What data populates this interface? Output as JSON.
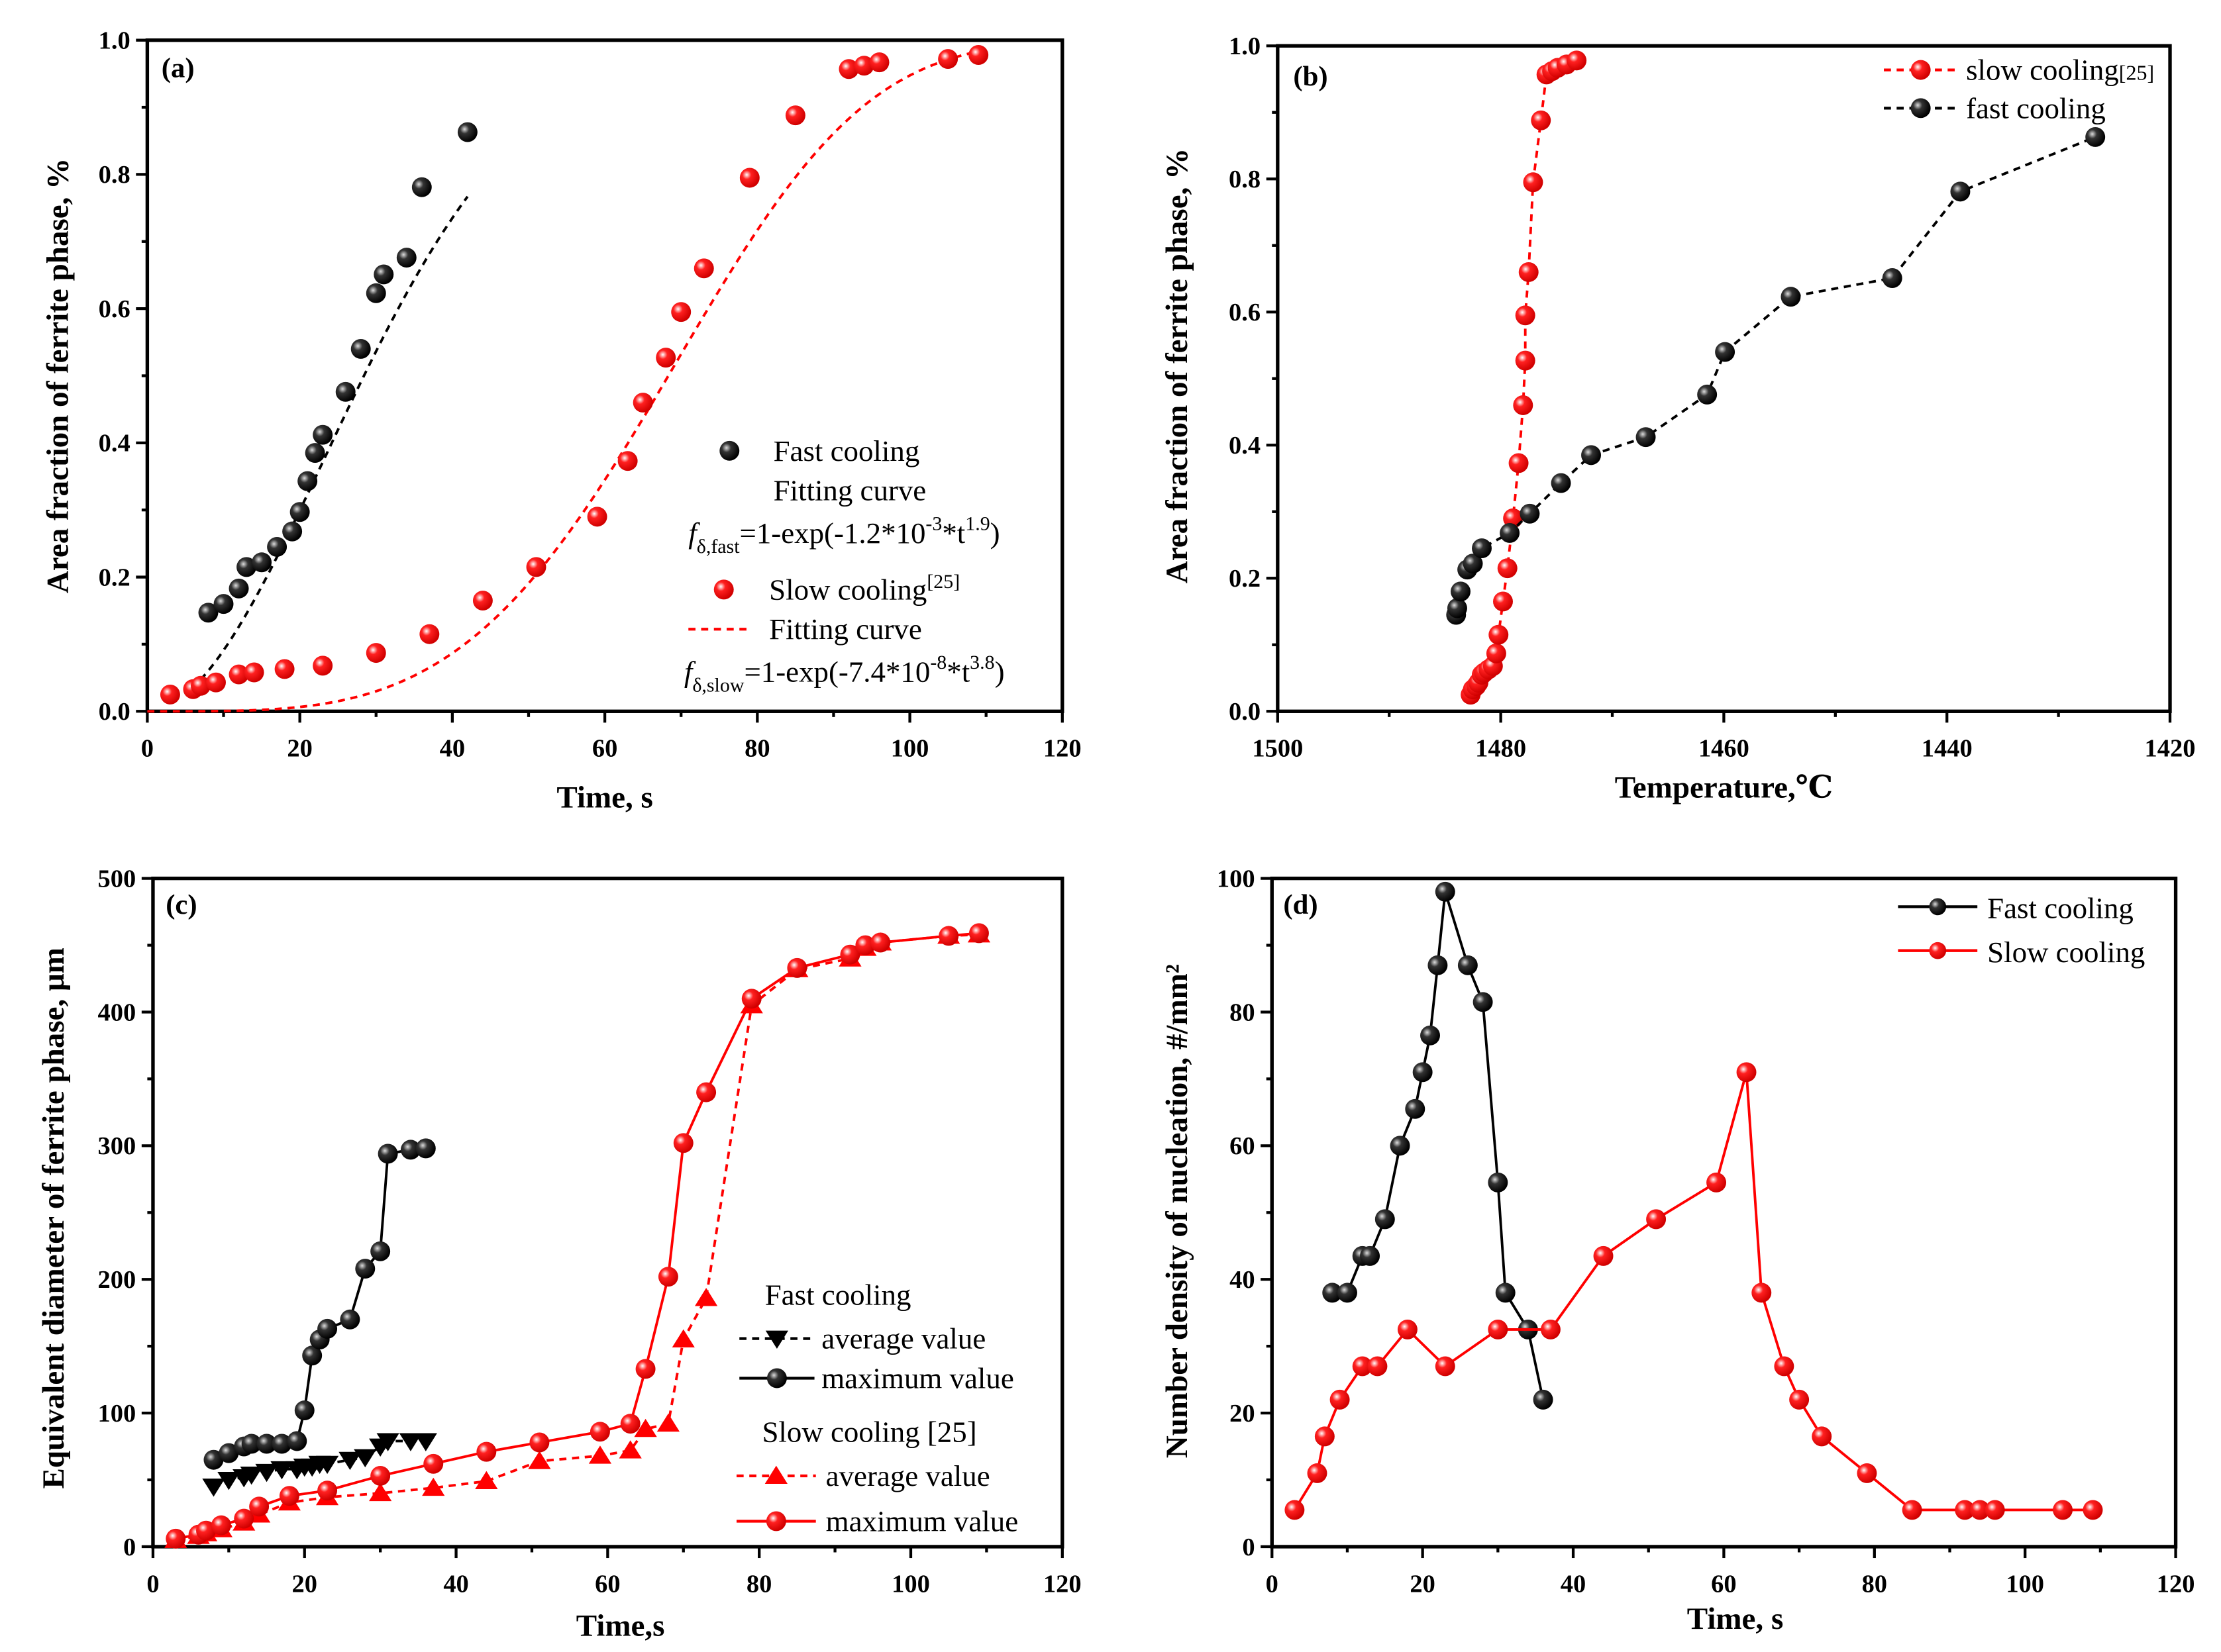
{
  "chart_data": [
    {
      "type": "scatter",
      "panel_label": "(a)",
      "xlabel": "Time, s",
      "ylabel": "Area fraction of ferrite phase, %",
      "xlim": [
        0,
        120
      ],
      "ylim": [
        0,
        1.0
      ],
      "xticks": [
        0,
        20,
        40,
        60,
        80,
        100,
        120
      ],
      "yticks": [
        "0.0",
        "0.2",
        "0.4",
        "0.6",
        "0.8",
        "1.0"
      ],
      "legend_position": "center-right",
      "series": [
        {
          "name": "Fast cooling",
          "color": "#000000",
          "marker": "ball",
          "x": [
            8,
            10,
            12,
            13,
            15,
            17,
            19,
            20,
            21,
            22,
            23,
            26,
            28,
            30,
            31,
            34,
            36,
            42
          ],
          "y": [
            0.147,
            0.16,
            0.183,
            0.215,
            0.222,
            0.245,
            0.268,
            0.297,
            0.343,
            0.385,
            0.412,
            0.476,
            0.54,
            0.623,
            0.651,
            0.676,
            0.781,
            0.863
          ]
        },
        {
          "name": "Slow cooling",
          "ref": "[25]",
          "color": "#ff0000",
          "marker": "ball",
          "x": [
            3,
            6,
            7,
            9,
            12,
            14,
            18,
            23,
            30,
            37,
            44,
            51,
            59,
            63,
            65,
            68,
            70,
            73,
            79,
            85,
            92,
            94,
            96,
            105,
            109
          ],
          "y": [
            0.025,
            0.033,
            0.038,
            0.043,
            0.055,
            0.058,
            0.063,
            0.068,
            0.087,
            0.115,
            0.165,
            0.215,
            0.29,
            0.373,
            0.46,
            0.527,
            0.595,
            0.66,
            0.795,
            0.888,
            0.957,
            0.962,
            0.967,
            0.972,
            0.978
          ]
        }
      ],
      "fits": [
        {
          "name": "Fitting curve",
          "color": "#000000",
          "k": 0.0012,
          "n": 1.9,
          "range": [
            7,
            42
          ],
          "formula": {
            "f": "f",
            "sub": "δ,fast",
            "body": "=1-exp(-1.2*10",
            "exp1": "-3",
            "mid": "*t",
            "exp2": "1.9",
            "end": ")"
          }
        },
        {
          "name": "Fitting curve",
          "color": "#ff0000",
          "k": 7.4e-08,
          "n": 3.8,
          "range": [
            0,
            110
          ],
          "formula": {
            "f": "f",
            "sub": "δ,slow",
            "body": "=1-exp(-7.4*10",
            "exp1": "-8",
            "mid": "*t",
            "exp2": "3.8",
            "end": ")"
          }
        }
      ]
    },
    {
      "type": "line",
      "panel_label": "(b)",
      "xlabel": "Temperature,℃",
      "ylabel": "Area fraction of ferrite phase, %",
      "xlim": [
        1500,
        1420
      ],
      "ylim": [
        0,
        1.0
      ],
      "xticks": [
        1500,
        1480,
        1460,
        1440,
        1420
      ],
      "yticks": [
        "0.0",
        "0.2",
        "0.4",
        "0.6",
        "0.8",
        "1.0"
      ],
      "legend_position": "top-right",
      "series": [
        {
          "name": "slow cooling",
          "ref": "[25]",
          "color": "#ff0000",
          "dash": true,
          "x": [
            1482.7,
            1482.5,
            1482.2,
            1482.0,
            1481.7,
            1481.5,
            1481.1,
            1480.7,
            1480.4,
            1480.2,
            1479.8,
            1479.4,
            1478.9,
            1478.4,
            1478.0,
            1477.8,
            1477.8,
            1477.5,
            1477.1,
            1476.4,
            1475.9,
            1475.4,
            1474.9,
            1474.1,
            1473.2
          ],
          "y": [
            0.025,
            0.033,
            0.038,
            0.043,
            0.055,
            0.058,
            0.063,
            0.068,
            0.087,
            0.115,
            0.165,
            0.215,
            0.29,
            0.373,
            0.46,
            0.527,
            0.595,
            0.66,
            0.795,
            0.888,
            0.957,
            0.962,
            0.967,
            0.972,
            0.978
          ]
        },
        {
          "name": "fast  cooling",
          "color": "#000000",
          "dash": true,
          "x": [
            1484.0,
            1483.9,
            1483.6,
            1483.0,
            1482.5,
            1481.7,
            1479.2,
            1477.4,
            1474.6,
            1471.9,
            1467.0,
            1461.5,
            1459.9,
            1454.0,
            1444.9,
            1438.8,
            1426.7
          ],
          "y": [
            0.145,
            0.155,
            0.18,
            0.213,
            0.222,
            0.245,
            0.268,
            0.297,
            0.343,
            0.385,
            0.412,
            0.476,
            0.54,
            0.623,
            0.651,
            0.781,
            0.863
          ]
        }
      ]
    },
    {
      "type": "line",
      "panel_label": "(c)",
      "xlabel": "Time,s",
      "ylabel": "Equivalent diameter of ferrite phase, μm",
      "xlim": [
        0,
        120
      ],
      "ylim": [
        0,
        500
      ],
      "xticks": [
        0,
        20,
        40,
        60,
        80,
        100,
        120
      ],
      "yticks": [
        "0",
        "100",
        "200",
        "300",
        "400",
        "500"
      ],
      "legend_position": "bottom-right",
      "legend_groups": [
        "Fast cooling",
        "Slow cooling [25]"
      ],
      "series": [
        {
          "group": "Fast cooling",
          "name": "average value",
          "color": "#000000",
          "dash": true,
          "marker": "triangle-down",
          "x": [
            8,
            10,
            12,
            13,
            15,
            17,
            19,
            20,
            21,
            22,
            23,
            26,
            28,
            30,
            31,
            34,
            36
          ],
          "y": [
            45,
            50,
            52,
            54,
            56,
            58,
            58,
            60,
            60,
            62,
            62,
            65,
            67,
            75,
            79,
            79,
            79
          ]
        },
        {
          "group": "Fast cooling",
          "name": "maximum value",
          "color": "#000000",
          "dash": false,
          "marker": "ball",
          "x": [
            8,
            10,
            12,
            13,
            15,
            17,
            19,
            20,
            21,
            22,
            23,
            26,
            28,
            30,
            31,
            34,
            36
          ],
          "y": [
            65,
            70,
            75,
            77,
            77,
            77,
            79,
            102,
            143,
            155,
            163,
            170,
            208,
            221,
            294,
            297,
            298
          ]
        },
        {
          "group": "Slow cooling [25]",
          "name": "average value",
          "color": "#ff0000",
          "dash": true,
          "marker": "triangle-up",
          "x": [
            3,
            6,
            7,
            9,
            12,
            14,
            18,
            23,
            30,
            37,
            44,
            51,
            59,
            63,
            65,
            68,
            70,
            73,
            79,
            85,
            92,
            94,
            96,
            105,
            109
          ],
          "y": [
            5,
            8,
            10,
            13,
            18,
            24,
            33,
            37,
            40,
            44,
            49,
            64,
            68,
            72,
            88,
            92,
            155,
            186,
            405,
            432,
            440,
            448,
            452,
            457,
            458
          ]
        },
        {
          "group": "Slow cooling [25]",
          "name": "maximum value",
          "color": "#ff0000",
          "dash": false,
          "marker": "ball",
          "x": [
            3,
            6,
            7,
            9,
            12,
            14,
            18,
            23,
            30,
            37,
            44,
            51,
            59,
            63,
            65,
            68,
            70,
            73,
            79,
            85,
            92,
            94,
            96,
            105,
            109
          ],
          "y": [
            6,
            9,
            12,
            16,
            21,
            30,
            38,
            42,
            53,
            62,
            71,
            78,
            86,
            92,
            133,
            202,
            302,
            340,
            410,
            433,
            443,
            450,
            452,
            457,
            459
          ]
        }
      ]
    },
    {
      "type": "line",
      "panel_label": "(d)",
      "xlabel": "Time, s",
      "ylabel": "Number density of nucleation, #/mm²",
      "xlim": [
        0,
        120
      ],
      "ylim": [
        0,
        100
      ],
      "xticks": [
        0,
        20,
        40,
        60,
        80,
        100,
        120
      ],
      "yticks": [
        "0",
        "20",
        "40",
        "60",
        "80",
        "100"
      ],
      "legend_position": "top-right",
      "series": [
        {
          "name": "Fast cooling",
          "color": "#000000",
          "marker": "ball",
          "x": [
            8,
            10,
            12,
            13,
            15,
            17,
            19,
            20,
            21,
            22,
            23,
            26,
            28,
            30,
            31,
            34,
            36
          ],
          "y": [
            38,
            38,
            43.5,
            43.5,
            49,
            60,
            65.5,
            71,
            76.5,
            87,
            98,
            87,
            81.5,
            54.5,
            38,
            32.5,
            22
          ]
        },
        {
          "name": "Slow cooling",
          "color": "#ff0000",
          "marker": "ball",
          "x": [
            3,
            6,
            7,
            9,
            12,
            14,
            18,
            23,
            30,
            37,
            44,
            51,
            59,
            63,
            65,
            68,
            70,
            73,
            79,
            85,
            92,
            94,
            96,
            105,
            109
          ],
          "y": [
            5.5,
            11,
            16.5,
            22,
            27,
            27,
            32.5,
            27,
            32.5,
            32.5,
            43.5,
            49,
            54.5,
            71,
            38,
            27,
            22,
            16.5,
            11,
            5.5,
            5.5,
            5.5,
            5.5,
            5.5,
            5.5
          ]
        }
      ]
    }
  ]
}
